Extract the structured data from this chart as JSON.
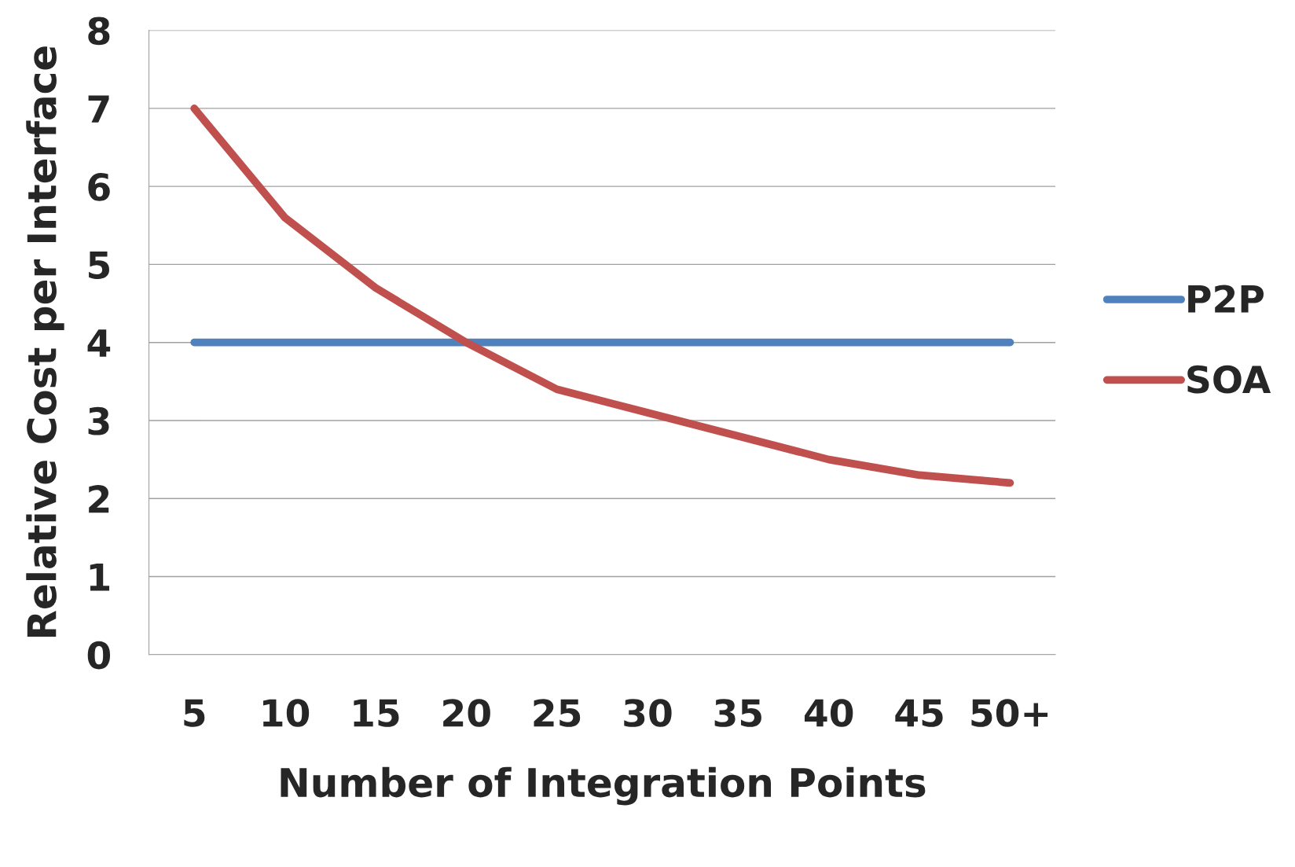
{
  "chart_data": {
    "type": "line",
    "xlabel": "Number of Integration Points",
    "ylabel": "Relative Cost per Interface",
    "categories": [
      "5",
      "10",
      "15",
      "20",
      "25",
      "30",
      "35",
      "40",
      "45",
      "50+"
    ],
    "series": [
      {
        "name": "P2P",
        "color": "#4f81bd",
        "values": [
          4,
          4,
          4,
          4,
          4,
          4,
          4,
          4,
          4,
          4
        ]
      },
      {
        "name": "SOA",
        "color": "#c0504d",
        "values": [
          7,
          5.6,
          4.7,
          4.0,
          3.4,
          3.1,
          2.8,
          2.5,
          2.3,
          2.2
        ]
      }
    ],
    "ylim": [
      0,
      8
    ],
    "yticks": [
      0,
      1,
      2,
      3,
      4,
      5,
      6,
      7,
      8
    ],
    "grid": "y",
    "legend": "right",
    "marker": "none",
    "line_style": "solid"
  }
}
